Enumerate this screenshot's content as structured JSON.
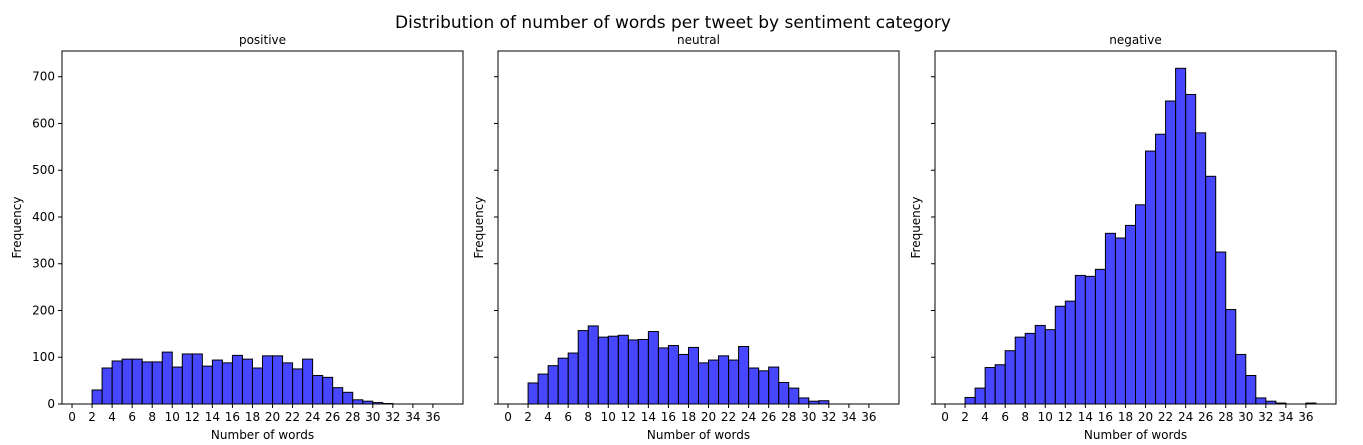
{
  "figure": {
    "title": "Distribution of number of words per tweet by sentiment category"
  },
  "chart_data": [
    {
      "type": "bar",
      "title": "positive",
      "xlabel": "Number of words",
      "ylabel": "Frequency",
      "xlim": [
        -1,
        39
      ],
      "ylim": [
        0,
        755
      ],
      "xticks": [
        0,
        2,
        4,
        6,
        8,
        10,
        12,
        14,
        16,
        18,
        20,
        22,
        24,
        26,
        28,
        30,
        32,
        34,
        36
      ],
      "yticks": [
        0,
        100,
        200,
        300,
        400,
        500,
        600,
        700
      ],
      "show_ytick_labels": true,
      "bar_color": "#0000ff",
      "bin_edges_start": 2,
      "bin_width": 1,
      "values": [
        30,
        77,
        92,
        96,
        96,
        90,
        90,
        111,
        79,
        107,
        107,
        81,
        94,
        88,
        104,
        96,
        77,
        103,
        103,
        88,
        75,
        96,
        61,
        57,
        35,
        25,
        9,
        6,
        3,
        1,
        0,
        0,
        0,
        0,
        0
      ]
    },
    {
      "type": "bar",
      "title": "neutral",
      "xlabel": "Number of words",
      "ylabel": "Frequency",
      "xlim": [
        -1,
        39
      ],
      "ylim": [
        0,
        755
      ],
      "xticks": [
        0,
        2,
        4,
        6,
        8,
        10,
        12,
        14,
        16,
        18,
        20,
        22,
        24,
        26,
        28,
        30,
        32,
        34,
        36
      ],
      "yticks": [
        0,
        100,
        200,
        300,
        400,
        500,
        600,
        700
      ],
      "show_ytick_labels": false,
      "bar_color": "#0000ff",
      "bin_edges_start": 2,
      "bin_width": 1,
      "values": [
        45,
        64,
        82,
        98,
        109,
        157,
        167,
        143,
        145,
        147,
        137,
        138,
        155,
        120,
        125,
        106,
        121,
        88,
        94,
        103,
        94,
        123,
        77,
        71,
        79,
        46,
        34,
        13,
        6,
        7,
        0,
        0,
        0,
        0,
        0
      ]
    },
    {
      "type": "bar",
      "title": "negative",
      "xlabel": "Number of words",
      "ylabel": "Frequency",
      "xlim": [
        -1,
        39
      ],
      "ylim": [
        0,
        755
      ],
      "xticks": [
        0,
        2,
        4,
        6,
        8,
        10,
        12,
        14,
        16,
        18,
        20,
        22,
        24,
        26,
        28,
        30,
        32,
        34,
        36
      ],
      "yticks": [
        0,
        100,
        200,
        300,
        400,
        500,
        600,
        700
      ],
      "show_ytick_labels": false,
      "bar_color": "#0000ff",
      "bin_edges_start": 2,
      "bin_width": 1,
      "values": [
        14,
        34,
        78,
        84,
        114,
        143,
        151,
        168,
        159,
        209,
        220,
        275,
        273,
        288,
        365,
        355,
        382,
        426,
        541,
        577,
        648,
        718,
        662,
        580,
        487,
        325,
        202,
        106,
        61,
        13,
        6,
        2,
        0,
        0,
        2
      ]
    }
  ]
}
